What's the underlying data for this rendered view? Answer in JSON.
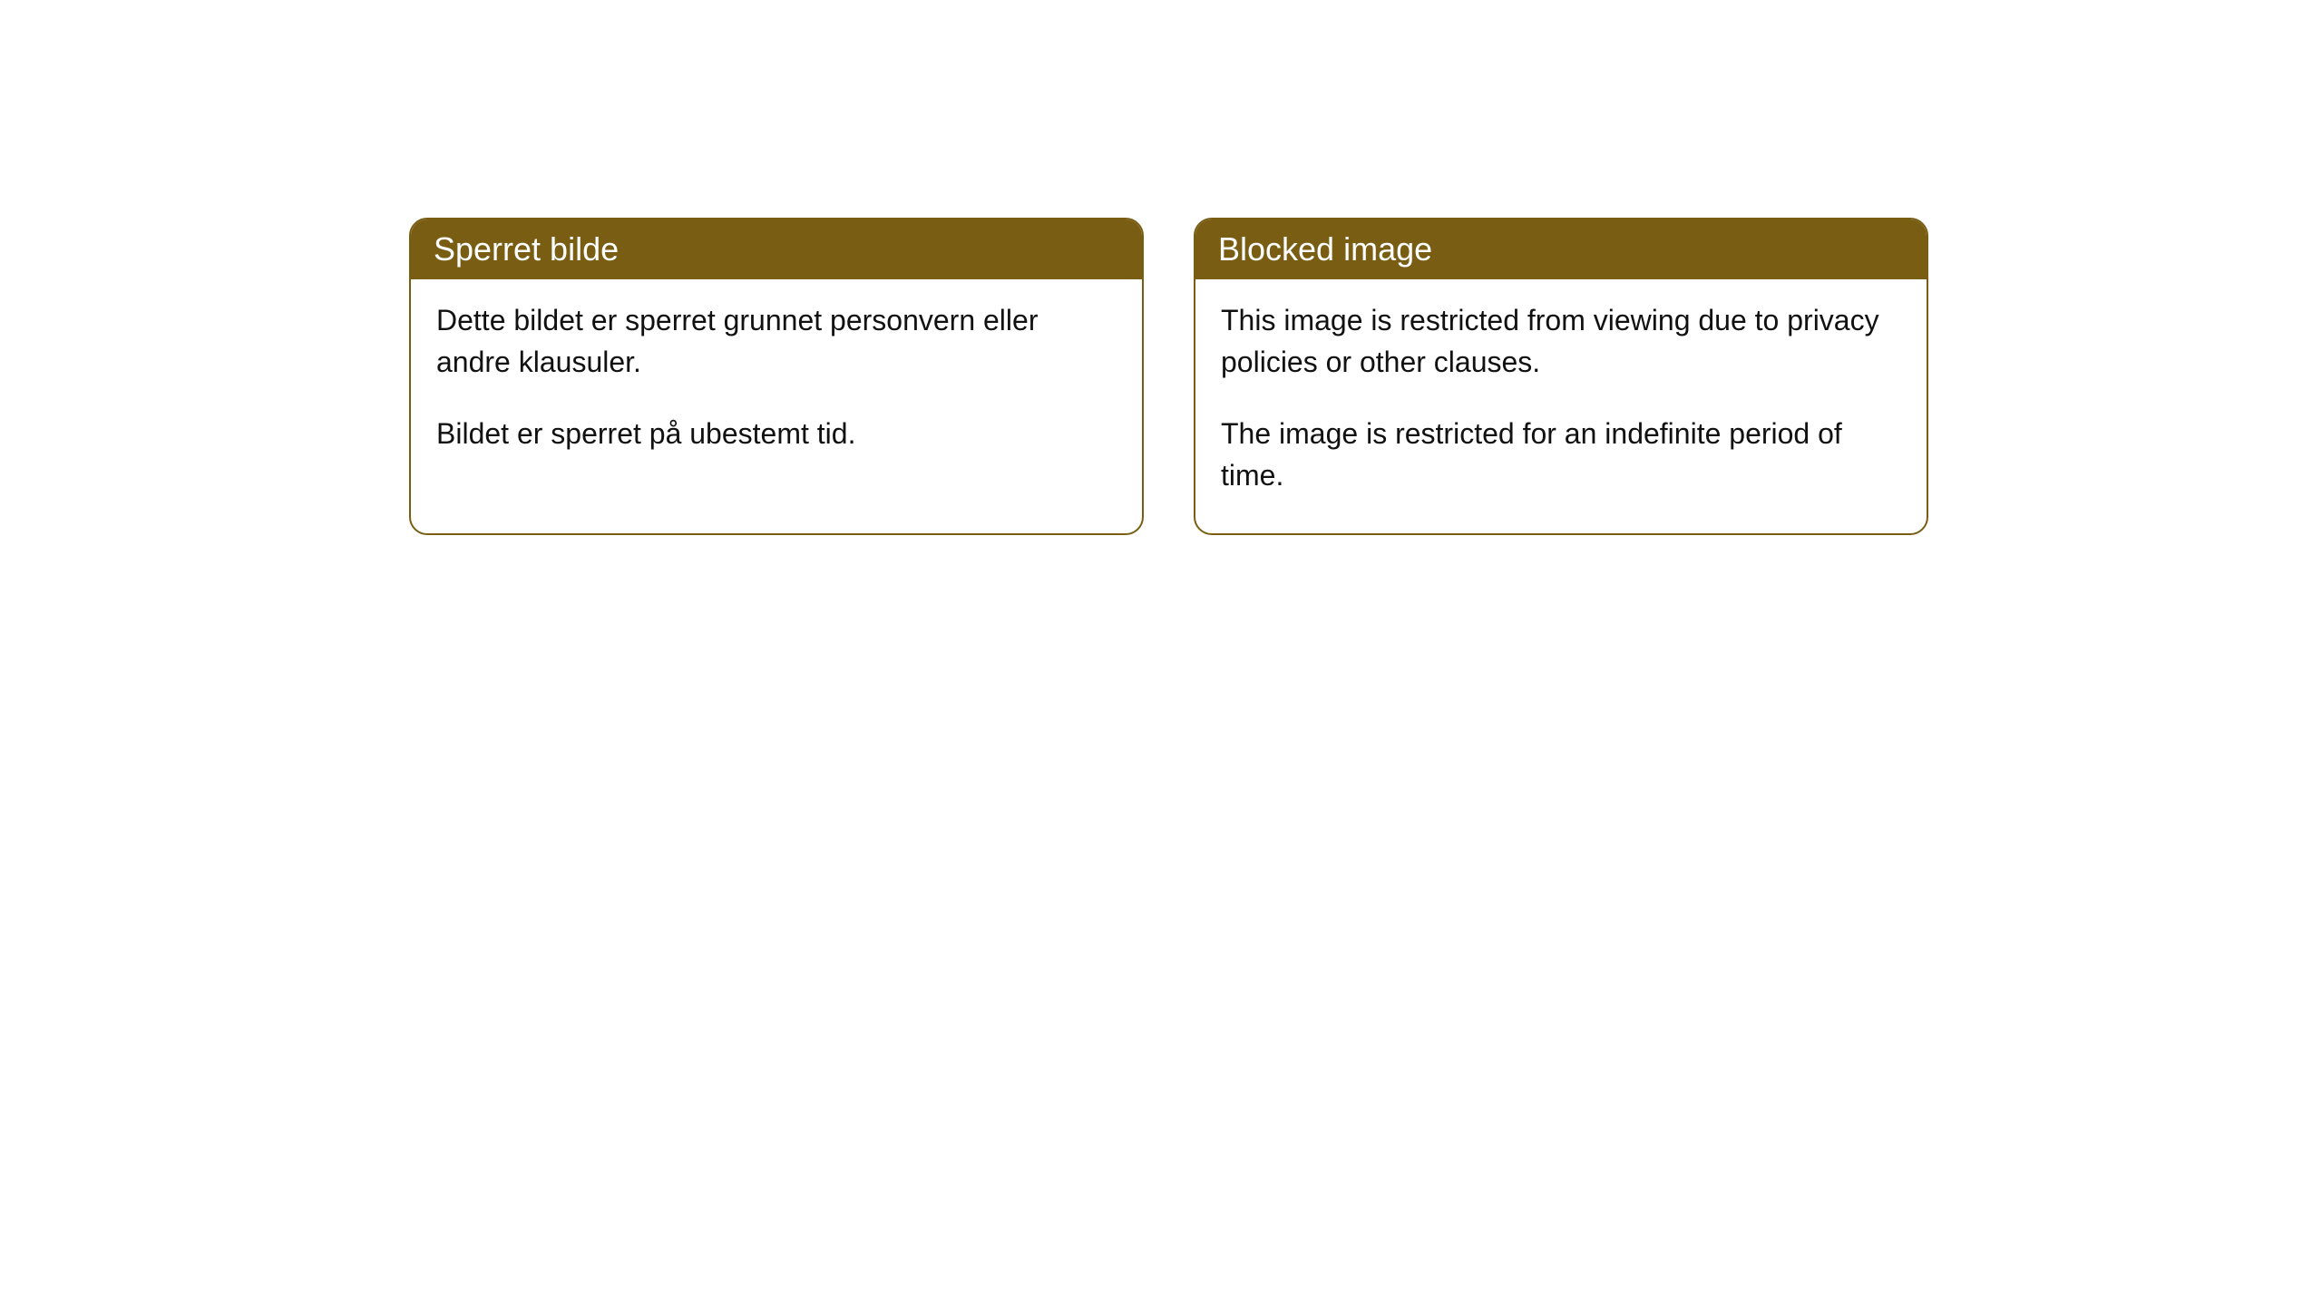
{
  "cards": [
    {
      "title": "Sperret bilde",
      "para1": "Dette bildet er sperret grunnet personvern eller andre klausuler.",
      "para2": "Bildet er sperret på ubestemt tid."
    },
    {
      "title": "Blocked image",
      "para1": "This image is restricted from viewing due to privacy policies or other clauses.",
      "para2": "The image is restricted for an indefinite period of time."
    }
  ],
  "style": {
    "header_bg": "#785d13",
    "header_text_color": "#ffffff",
    "border_color": "#785d13",
    "body_bg": "#ffffff",
    "body_text_color": "#111111",
    "border_radius": 20,
    "title_fontsize": 36,
    "body_fontsize": 32
  }
}
